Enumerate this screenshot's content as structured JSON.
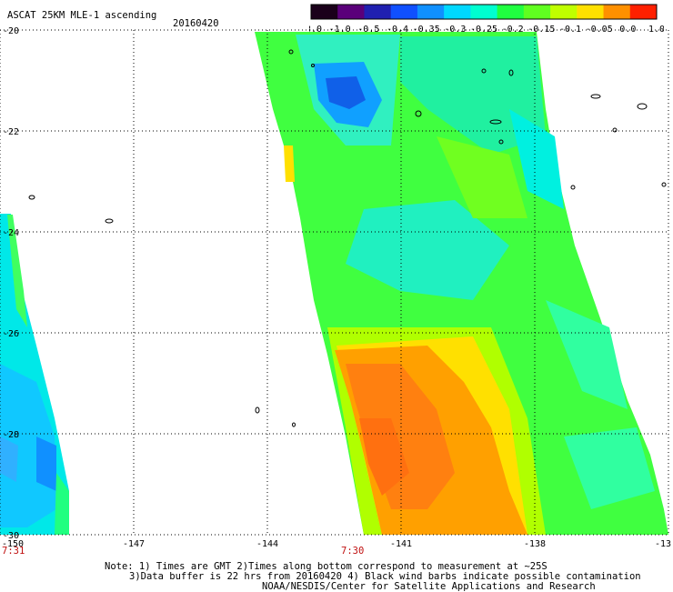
{
  "header": {
    "title": "ASCAT 25KM MLE-1 ascending",
    "date": "20160420"
  },
  "colorbar": {
    "tick_labels": [
      "-3.0",
      "-1.0",
      "-0.5",
      "-0.4",
      "-0.35",
      "-0.3",
      "-0.25",
      "-0.2",
      "-0.15",
      "-0.1",
      "-0.05",
      "0.0",
      "1.0"
    ],
    "colors": [
      "#1a001a",
      "#5a007a",
      "#2020b0",
      "#1050ff",
      "#1090ff",
      "#00d8ff",
      "#00ffd0",
      "#20ff40",
      "#60ff20",
      "#c0ff00",
      "#ffe000",
      "#ff9000",
      "#ff2000"
    ]
  },
  "map": {
    "x_ticks": [
      "-150",
      "-147",
      "-144",
      "-141",
      "-138",
      "-13"
    ],
    "y_ticks": [
      "-20",
      "-22",
      "-24",
      "-26",
      "-28",
      "-30"
    ],
    "time_labels": [
      "7:31",
      "7:30"
    ]
  },
  "notes": {
    "line1": "Note: 1) Times are GMT 2)Times along bottom correspond to measurement at ~25S",
    "line2": "3)Data buffer is 22 hrs from 20160420 4) Black wind barbs indicate possible contamination",
    "line3": "NOAA/NESDIS/Center for Satellite Applications and Research"
  }
}
